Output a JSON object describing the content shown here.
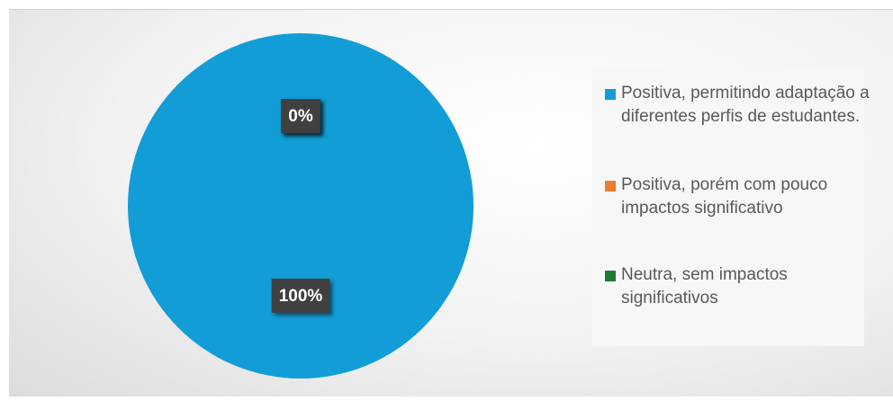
{
  "chart_data": {
    "type": "pie",
    "categories": [
      "Positiva, permitindo adaptação a diferentes perfis de estudantes.",
      "Positiva, porém com pouco impactos significativo",
      "Neutra, sem impactos significativos"
    ],
    "values": [
      100,
      0,
      0
    ],
    "value_labels": [
      "100%",
      "0%",
      "0%"
    ],
    "colors": [
      "#139dd6",
      "#ed7d31",
      "#1f7a34"
    ],
    "legend": "right"
  }
}
